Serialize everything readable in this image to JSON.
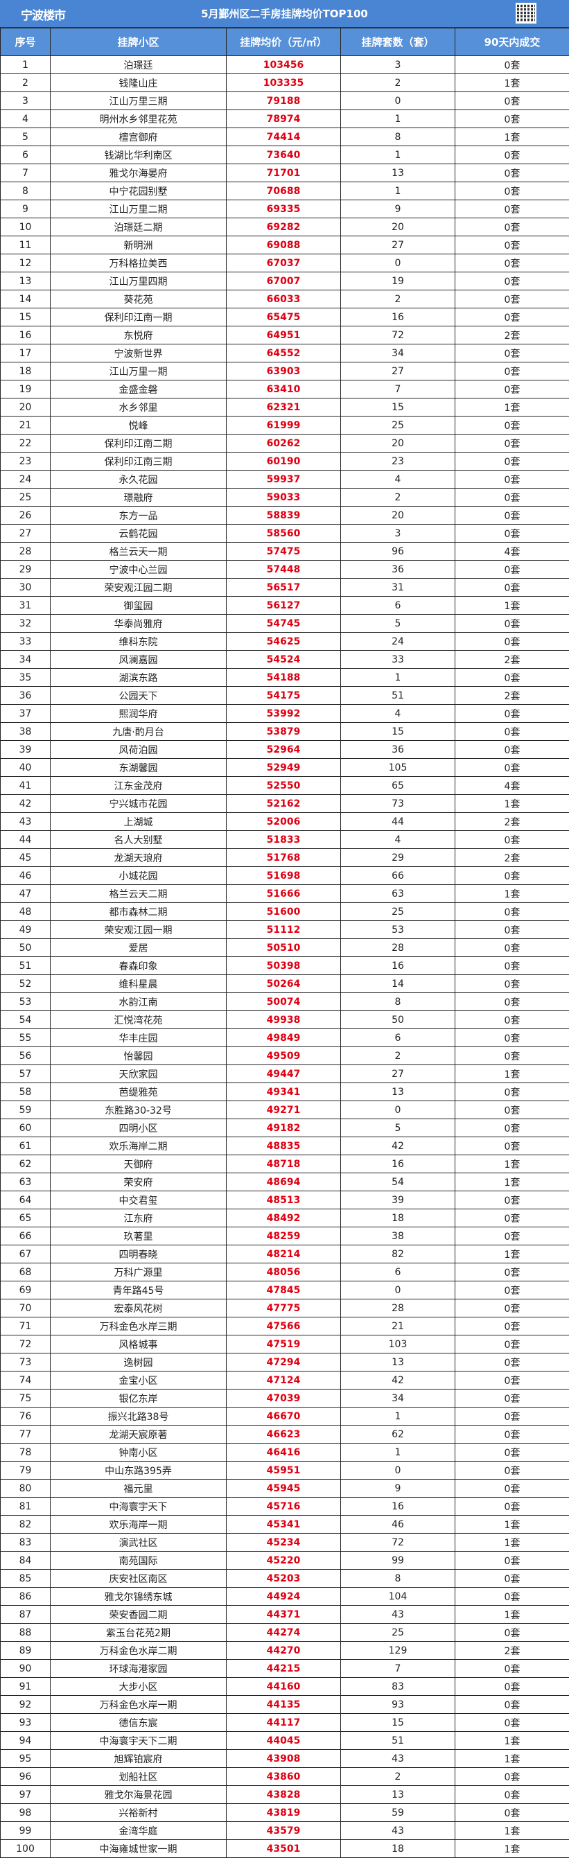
{
  "header": {
    "logo_text": "宁波楼市",
    "title": "5月鄞州区二手房挂牌均价TOP100"
  },
  "colors": {
    "title_bar": "#4a85d3",
    "header_row": "#5690d8",
    "price": "#e00012"
  },
  "table": {
    "columns": [
      "序号",
      "挂牌小区",
      "挂牌均价（元/㎡）",
      "挂牌套数（套）",
      "90天内成交"
    ],
    "rows": [
      [
        "1",
        "泊璟廷",
        "103456",
        "3",
        "0套"
      ],
      [
        "2",
        "钱隆山庄",
        "103335",
        "2",
        "1套"
      ],
      [
        "3",
        "江山万里三期",
        "79188",
        "0",
        "0套"
      ],
      [
        "4",
        "明州水乡邻里花苑",
        "78974",
        "1",
        "0套"
      ],
      [
        "5",
        "檀宫御府",
        "74414",
        "8",
        "1套"
      ],
      [
        "6",
        "钱湖比华利南区",
        "73640",
        "1",
        "0套"
      ],
      [
        "7",
        "雅戈尔海晏府",
        "71701",
        "13",
        "0套"
      ],
      [
        "8",
        "中宁花园别墅",
        "70688",
        "1",
        "0套"
      ],
      [
        "9",
        "江山万里二期",
        "69335",
        "9",
        "0套"
      ],
      [
        "10",
        "泊璟廷二期",
        "69282",
        "20",
        "0套"
      ],
      [
        "11",
        "新明洲",
        "69088",
        "27",
        "0套"
      ],
      [
        "12",
        "万科格拉美西",
        "67037",
        "0",
        "0套"
      ],
      [
        "13",
        "江山万里四期",
        "67007",
        "19",
        "0套"
      ],
      [
        "14",
        "葵花苑",
        "66033",
        "2",
        "0套"
      ],
      [
        "15",
        "保利印江南一期",
        "65475",
        "16",
        "0套"
      ],
      [
        "16",
        "东悦府",
        "64951",
        "72",
        "2套"
      ],
      [
        "17",
        "宁波新世界",
        "64552",
        "34",
        "0套"
      ],
      [
        "18",
        "江山万里一期",
        "63903",
        "27",
        "0套"
      ],
      [
        "19",
        "金盛金磐",
        "63410",
        "7",
        "0套"
      ],
      [
        "20",
        "水乡邻里",
        "62321",
        "15",
        "1套"
      ],
      [
        "21",
        "悦峰",
        "61999",
        "25",
        "0套"
      ],
      [
        "22",
        "保利印江南二期",
        "60262",
        "20",
        "0套"
      ],
      [
        "23",
        "保利印江南三期",
        "60190",
        "23",
        "0套"
      ],
      [
        "24",
        "永久花园",
        "59937",
        "4",
        "0套"
      ],
      [
        "25",
        "璟融府",
        "59033",
        "2",
        "0套"
      ],
      [
        "26",
        "东方一品",
        "58839",
        "20",
        "0套"
      ],
      [
        "27",
        "云鹤花园",
        "58560",
        "3",
        "0套"
      ],
      [
        "28",
        "格兰云天一期",
        "57475",
        "96",
        "4套"
      ],
      [
        "29",
        "宁波中心兰园",
        "57448",
        "36",
        "0套"
      ],
      [
        "30",
        "荣安观江园二期",
        "56517",
        "31",
        "0套"
      ],
      [
        "31",
        "御玺园",
        "56127",
        "6",
        "1套"
      ],
      [
        "32",
        "华泰尚雅府",
        "54745",
        "5",
        "0套"
      ],
      [
        "33",
        "维科东院",
        "54625",
        "24",
        "0套"
      ],
      [
        "34",
        "风澜嘉园",
        "54524",
        "33",
        "2套"
      ],
      [
        "35",
        "湖滨东路",
        "54188",
        "1",
        "0套"
      ],
      [
        "36",
        "公园天下",
        "54175",
        "51",
        "2套"
      ],
      [
        "37",
        "熙润华府",
        "53992",
        "4",
        "0套"
      ],
      [
        "38",
        "九唐·酌月台",
        "53879",
        "15",
        "0套"
      ],
      [
        "39",
        "风荷泊园",
        "52964",
        "36",
        "0套"
      ],
      [
        "40",
        "东湖馨园",
        "52949",
        "105",
        "0套"
      ],
      [
        "41",
        "江东金茂府",
        "52550",
        "65",
        "4套"
      ],
      [
        "42",
        "宁兴城市花园",
        "52162",
        "73",
        "1套"
      ],
      [
        "43",
        "上湖城",
        "52006",
        "44",
        "2套"
      ],
      [
        "44",
        "名人大别墅",
        "51833",
        "4",
        "0套"
      ],
      [
        "45",
        "龙湖天琅府",
        "51768",
        "29",
        "2套"
      ],
      [
        "46",
        "小城花园",
        "51698",
        "66",
        "0套"
      ],
      [
        "47",
        "格兰云天二期",
        "51666",
        "63",
        "1套"
      ],
      [
        "48",
        "都市森林二期",
        "51600",
        "25",
        "0套"
      ],
      [
        "49",
        "荣安观江园一期",
        "51112",
        "53",
        "0套"
      ],
      [
        "50",
        "爱居",
        "50510",
        "28",
        "0套"
      ],
      [
        "51",
        "春森印象",
        "50398",
        "16",
        "0套"
      ],
      [
        "52",
        "维科星晨",
        "50264",
        "14",
        "0套"
      ],
      [
        "53",
        "水韵江南",
        "50074",
        "8",
        "0套"
      ],
      [
        "54",
        "汇悦湾花苑",
        "49938",
        "50",
        "0套"
      ],
      [
        "55",
        "华丰庄园",
        "49849",
        "6",
        "0套"
      ],
      [
        "56",
        "怡馨园",
        "49509",
        "2",
        "0套"
      ],
      [
        "57",
        "天欣家园",
        "49447",
        "27",
        "1套"
      ],
      [
        "58",
        "芭缇雅苑",
        "49341",
        "13",
        "0套"
      ],
      [
        "59",
        "东胜路30-32号",
        "49271",
        "0",
        "0套"
      ],
      [
        "60",
        "四明小区",
        "49182",
        "5",
        "0套"
      ],
      [
        "61",
        "欢乐海岸二期",
        "48835",
        "42",
        "0套"
      ],
      [
        "62",
        "天御府",
        "48718",
        "16",
        "1套"
      ],
      [
        "63",
        "荣安府",
        "48694",
        "54",
        "1套"
      ],
      [
        "64",
        "中交君玺",
        "48513",
        "39",
        "0套"
      ],
      [
        "65",
        "江东府",
        "48492",
        "18",
        "0套"
      ],
      [
        "66",
        "玖著里",
        "48259",
        "38",
        "0套"
      ],
      [
        "67",
        "四明春晓",
        "48214",
        "82",
        "1套"
      ],
      [
        "68",
        "万科广源里",
        "48056",
        "6",
        "0套"
      ],
      [
        "69",
        "青年路45号",
        "47845",
        "0",
        "0套"
      ],
      [
        "70",
        "宏泰风花树",
        "47775",
        "28",
        "0套"
      ],
      [
        "71",
        "万科金色水岸三期",
        "47566",
        "21",
        "0套"
      ],
      [
        "72",
        "风格城事",
        "47519",
        "103",
        "0套"
      ],
      [
        "73",
        "逸树园",
        "47294",
        "13",
        "0套"
      ],
      [
        "74",
        "金宝小区",
        "47124",
        "42",
        "0套"
      ],
      [
        "75",
        "银亿东岸",
        "47039",
        "34",
        "0套"
      ],
      [
        "76",
        "振兴北路38号",
        "46670",
        "1",
        "0套"
      ],
      [
        "77",
        "龙湖天宸原著",
        "46623",
        "62",
        "0套"
      ],
      [
        "78",
        "钟南小区",
        "46416",
        "1",
        "0套"
      ],
      [
        "79",
        "中山东路395弄",
        "45951",
        "0",
        "0套"
      ],
      [
        "80",
        "福元里",
        "45945",
        "9",
        "0套"
      ],
      [
        "81",
        "中海寰宇天下",
        "45716",
        "16",
        "0套"
      ],
      [
        "82",
        "欢乐海岸一期",
        "45341",
        "46",
        "1套"
      ],
      [
        "83",
        "演武社区",
        "45234",
        "72",
        "1套"
      ],
      [
        "84",
        "南苑国际",
        "45220",
        "99",
        "0套"
      ],
      [
        "85",
        "庆安社区南区",
        "45203",
        "8",
        "0套"
      ],
      [
        "86",
        "雅戈尔锦绣东城",
        "44924",
        "104",
        "0套"
      ],
      [
        "87",
        "荣安香园二期",
        "44371",
        "43",
        "1套"
      ],
      [
        "88",
        "紫玉台花苑2期",
        "44274",
        "25",
        "0套"
      ],
      [
        "89",
        "万科金色水岸二期",
        "44270",
        "129",
        "2套"
      ],
      [
        "90",
        "环球海港家园",
        "44215",
        "7",
        "0套"
      ],
      [
        "91",
        "大步小区",
        "44160",
        "83",
        "0套"
      ],
      [
        "92",
        "万科金色水岸一期",
        "44135",
        "93",
        "0套"
      ],
      [
        "93",
        "德信东宸",
        "44117",
        "15",
        "0套"
      ],
      [
        "94",
        "中海寰宇天下二期",
        "44045",
        "51",
        "1套"
      ],
      [
        "95",
        "旭辉铂宸府",
        "43908",
        "43",
        "1套"
      ],
      [
        "96",
        "划船社区",
        "43860",
        "2",
        "0套"
      ],
      [
        "97",
        "雅戈尔海景花园",
        "43828",
        "13",
        "0套"
      ],
      [
        "98",
        "兴裕新村",
        "43819",
        "59",
        "0套"
      ],
      [
        "99",
        "金湾华庭",
        "43579",
        "43",
        "1套"
      ],
      [
        "100",
        "中海雍城世家一期",
        "43501",
        "18",
        "1套"
      ]
    ]
  }
}
